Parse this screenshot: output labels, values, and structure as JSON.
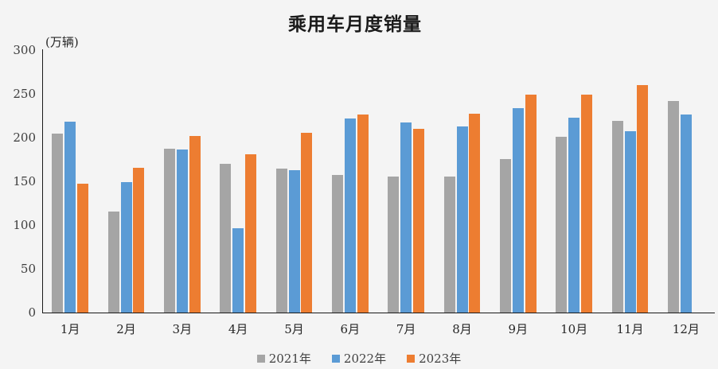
{
  "chart_data": {
    "type": "bar",
    "title": "乘用车月度销量",
    "ylabel": "(万辆)",
    "xlabel": "",
    "categories": [
      "1月",
      "2月",
      "3月",
      "4月",
      "5月",
      "6月",
      "7月",
      "8月",
      "9月",
      "10月",
      "11月",
      "12月"
    ],
    "series": [
      {
        "name": "2021年",
        "color": "#A5A5A5",
        "values": [
          204.5,
          115.6,
          187.4,
          170.4,
          164.6,
          156.9,
          155.1,
          155.2,
          175.1,
          200.7,
          219.2,
          242.2
        ]
      },
      {
        "name": "2022年",
        "color": "#5B9BD5",
        "values": [
          218.6,
          148.7,
          186.4,
          96.5,
          162.3,
          222.2,
          217.4,
          212.5,
          233.2,
          223.1,
          207.5,
          226.3
        ]
      },
      {
        "name": "2023年",
        "color": "#ED7D31",
        "values": [
          146.9,
          165.3,
          201.7,
          181.1,
          205.1,
          226.8,
          210.0,
          227.5,
          248.9,
          249.1,
          260.4,
          null
        ]
      }
    ],
    "ylim": [
      0,
      300
    ],
    "yticks": [
      0,
      50,
      100,
      150,
      200,
      250,
      300
    ],
    "grid": false,
    "legend_position": "bottom",
    "background_color": "#F4F4F4",
    "axis_color": "#1a1a1a",
    "tick_text_color": "#3d3d3d"
  }
}
